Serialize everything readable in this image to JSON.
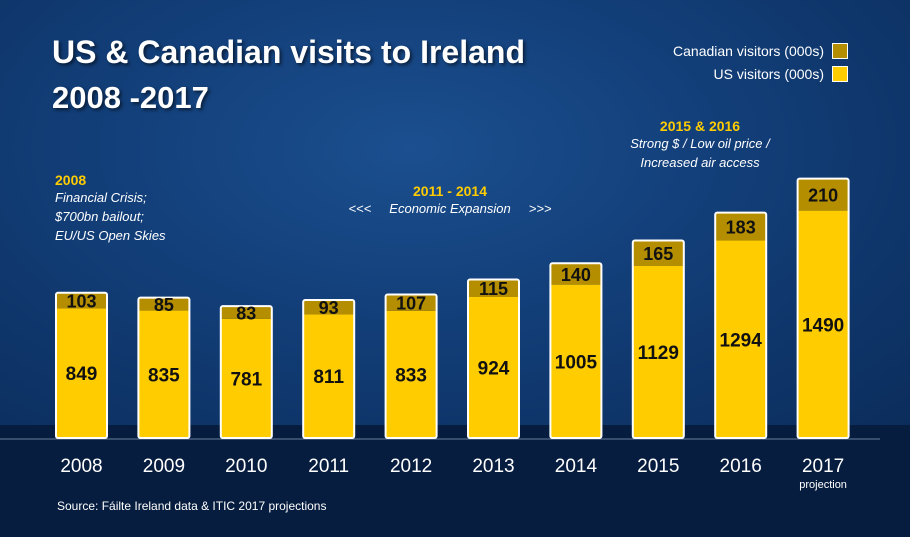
{
  "title_line1": "US & Canadian visits to Ireland",
  "title_line2": "2008 -2017",
  "source": "Source: Fáilte Ireland data & ITIC 2017 projections",
  "notes": {
    "n2008": {
      "heading": "2008",
      "lines": [
        "Financial Crisis;",
        "$700bn bailout;",
        "EU/US Open Skies"
      ]
    },
    "n2011": {
      "heading": "2011 - 2014",
      "line": "<<<     Economic Expansion     >>>"
    },
    "n2015": {
      "heading": "2015 & 2016",
      "lines": [
        "Strong $ / Low oil price /",
        "Increased air access"
      ]
    }
  },
  "colors": {
    "background": "#0b2d5c",
    "us": "#ffcc00",
    "canadian": "#b58e00",
    "note_heading": "#ffcc00",
    "text": "#ffffff"
  },
  "chart_data": {
    "type": "bar",
    "stacked": true,
    "categories": [
      "2008",
      "2009",
      "2010",
      "2011",
      "2012",
      "2013",
      "2014",
      "2015",
      "2016",
      "2017"
    ],
    "category_sublabels": [
      "",
      "",
      "",
      "",
      "",
      "",
      "",
      "",
      "",
      "projection"
    ],
    "series": [
      {
        "name": "US visitors (000s)",
        "color": "#ffcc00",
        "values": [
          849,
          835,
          781,
          811,
          833,
          924,
          1005,
          1129,
          1294,
          1490
        ]
      },
      {
        "name": "Canadian visitors (000s)",
        "color": "#b58e00",
        "values": [
          103,
          85,
          83,
          93,
          107,
          115,
          140,
          165,
          183,
          210
        ]
      }
    ],
    "legend_position": "top-right",
    "y_axis_visible": false,
    "grid": false
  }
}
